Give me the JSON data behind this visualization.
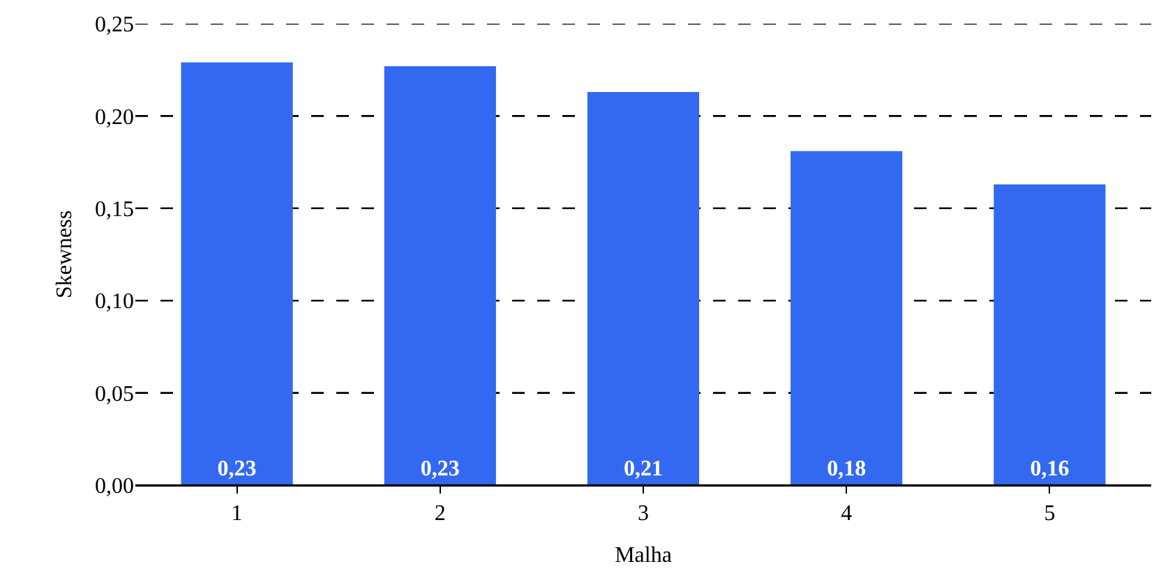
{
  "chart_data": {
    "type": "bar",
    "xlabel": "Malha",
    "ylabel": "Skewness",
    "categories": [
      "1",
      "2",
      "3",
      "4",
      "5"
    ],
    "values": [
      0.229,
      0.227,
      0.213,
      0.181,
      0.163
    ],
    "value_labels": [
      "0,23",
      "0,23",
      "0,21",
      "0,18",
      "0,16"
    ],
    "color": "#3369f0",
    "ylim": [
      0,
      0.25
    ],
    "yticks": [
      {
        "value": 0,
        "label": "0,00"
      },
      {
        "value": 0.05,
        "label": "0,05"
      },
      {
        "value": 0.1,
        "label": "0,10"
      },
      {
        "value": 0.15,
        "label": "0,15"
      },
      {
        "value": 0.2,
        "label": "0,20"
      },
      {
        "value": 0.25,
        "label": "0,25"
      }
    ],
    "grid": "y"
  }
}
